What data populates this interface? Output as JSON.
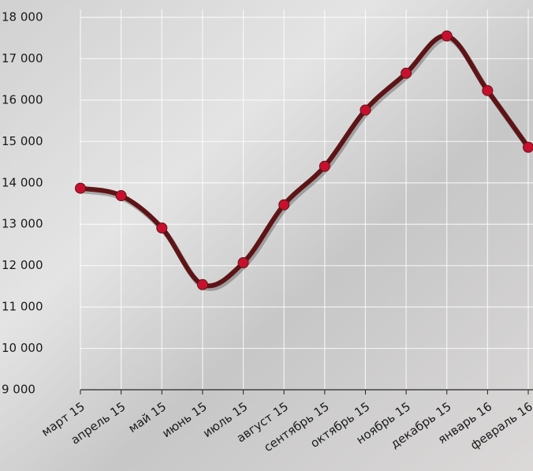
{
  "chart_data": {
    "type": "line",
    "categories": [
      "март 15",
      "апрель 15",
      "май 15",
      "июнь 15",
      "июль 15",
      "август 15",
      "сентябрь 15",
      "октябрь 15",
      "ноябрь 15",
      "декабрь 15",
      "январь 16",
      "февраль 16"
    ],
    "series": [
      {
        "color": "#c8102e",
        "line_color": "#5e1416",
        "values": [
          13870,
          13690,
          12910,
          11540,
          12070,
          13470,
          14400,
          15760,
          16650,
          17550,
          16230,
          14860
        ]
      }
    ],
    "ylim": [
      9000,
      18000
    ],
    "yticks": [
      {
        "value": 9000,
        "label": "9 000"
      },
      {
        "value": 10000,
        "label": "10 000"
      },
      {
        "value": 11000,
        "label": "11 000"
      },
      {
        "value": 12000,
        "label": "12 000"
      },
      {
        "value": 13000,
        "label": "13 000"
      },
      {
        "value": 14000,
        "label": "14 000"
      },
      {
        "value": 15000,
        "label": "15 000"
      },
      {
        "value": 16000,
        "label": "16 000"
      },
      {
        "value": 17000,
        "label": "17 000"
      },
      {
        "value": 18000,
        "label": "18 000"
      }
    ],
    "grid": true
  }
}
